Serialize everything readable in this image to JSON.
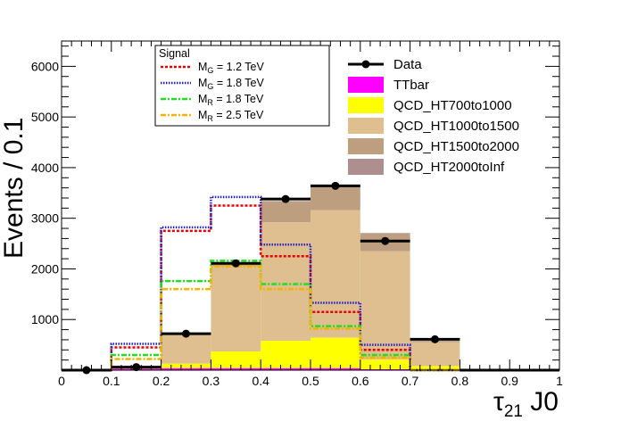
{
  "chart_data": {
    "type": "histogram",
    "xlabel_main": "τ",
    "xlabel_sub": "21",
    "xlabel_suffix": " J0",
    "ylabel": "Events / 0.1",
    "xlim": [
      0,
      1
    ],
    "ylim": [
      0,
      6500
    ],
    "bins": [
      0,
      0.1,
      0.2,
      0.3,
      0.4,
      0.5,
      0.6,
      0.7,
      0.8,
      0.9,
      1.0
    ],
    "x_ticks": [
      "0",
      "0.1",
      "0.2",
      "0.3",
      "0.4",
      "0.5",
      "0.6",
      "0.7",
      "0.8",
      "0.9",
      "1"
    ],
    "y_ticks": [
      {
        "value": 1000,
        "label": "1000"
      },
      {
        "value": 2000,
        "label": "2000"
      },
      {
        "value": 3000,
        "label": "3000"
      },
      {
        "value": 4000,
        "label": "4000"
      },
      {
        "value": 5000,
        "label": "5000"
      },
      {
        "value": 6000,
        "label": "6000"
      }
    ],
    "stack": [
      {
        "name": "TTbar",
        "color": "#ff00ff",
        "values": [
          0,
          30,
          40,
          40,
          40,
          40,
          20,
          10,
          0,
          0
        ]
      },
      {
        "name": "QCD_HT700to1000",
        "color": "#ffff00",
        "values": [
          0,
          20,
          90,
          330,
          540,
          600,
          190,
          70,
          0,
          0
        ]
      },
      {
        "name": "QCD_HT1000to1500",
        "color": "#dfbf8f",
        "values": [
          0,
          10,
          570,
          1690,
          2340,
          2520,
          2140,
          470,
          0,
          0
        ]
      },
      {
        "name": "QCD_HT1500to2000",
        "color": "#bd9f7f",
        "values": [
          0,
          0,
          20,
          60,
          410,
          450,
          350,
          30,
          0,
          0
        ]
      },
      {
        "name": "QCD_HT2000toInf",
        "color": "#ad8f90",
        "values": [
          0,
          0,
          0,
          0,
          10,
          10,
          10,
          0,
          0,
          0
        ]
      }
    ],
    "data_series": {
      "name": "Data",
      "x": [
        0.05,
        0.15,
        0.25,
        0.35,
        0.45,
        0.55,
        0.65,
        0.75,
        0.85,
        0.95
      ],
      "y": [
        0,
        60,
        720,
        2110,
        3380,
        3640,
        2550,
        610,
        0,
        0
      ]
    },
    "signal_title": "Signal",
    "signals": [
      {
        "name_main": "M",
        "name_sub": "G",
        "name_suffix": " = 1.2 TeV",
        "color": "#e60000",
        "dash": "3,2",
        "width": 2.5,
        "values": [
          0,
          450,
          2750,
          3250,
          2250,
          1150,
          400,
          0,
          0,
          0
        ]
      },
      {
        "name_main": "M",
        "name_sub": "G",
        "name_suffix": " = 1.8 TeV",
        "color": "#1f1fcc",
        "dash": "1.5,1.5",
        "width": 2.5,
        "values": [
          0,
          520,
          2820,
          3420,
          2480,
          1330,
          500,
          0,
          0,
          0
        ]
      },
      {
        "name_main": "M",
        "name_sub": "R",
        "name_suffix": " = 1.8 TeV",
        "color": "#22dd22",
        "dash": "6,2,2,2",
        "width": 2.5,
        "values": [
          0,
          300,
          1760,
          2160,
          1700,
          870,
          300,
          0,
          0,
          0
        ]
      },
      {
        "name_main": "M",
        "name_sub": "R",
        "name_suffix": " = 2.5 TeV",
        "color": "#f0b400",
        "dash": "6,2,2,2",
        "width": 2.5,
        "values": [
          0,
          220,
          1600,
          2050,
          1600,
          820,
          250,
          0,
          0,
          0
        ]
      }
    ]
  }
}
